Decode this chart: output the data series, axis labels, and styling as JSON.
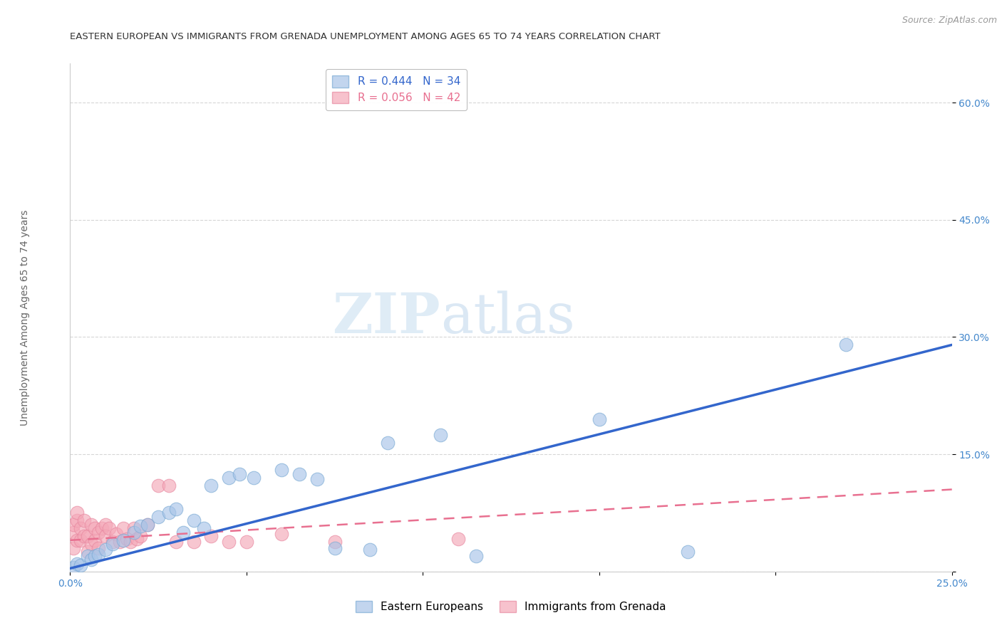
{
  "title": "EASTERN EUROPEAN VS IMMIGRANTS FROM GRENADA UNEMPLOYMENT AMONG AGES 65 TO 74 YEARS CORRELATION CHART",
  "source": "Source: ZipAtlas.com",
  "ylabel": "Unemployment Among Ages 65 to 74 years",
  "xlim": [
    0.0,
    0.25
  ],
  "ylim": [
    0.0,
    0.65
  ],
  "xticks": [
    0.0,
    0.05,
    0.1,
    0.15,
    0.2,
    0.25
  ],
  "yticks": [
    0.0,
    0.15,
    0.3,
    0.45,
    0.6
  ],
  "ytick_labels": [
    "",
    "15.0%",
    "30.0%",
    "45.0%",
    "60.0%"
  ],
  "xtick_labels": [
    "0.0%",
    "",
    "",
    "",
    "",
    "25.0%"
  ],
  "watermark_zip": "ZIP",
  "watermark_atlas": "atlas",
  "legend1_r": "0.444",
  "legend1_n": "34",
  "legend2_r": "0.056",
  "legend2_n": "42",
  "blue_color": "#a8c4e8",
  "blue_edge_color": "#7aaad4",
  "pink_color": "#f4a8b8",
  "pink_edge_color": "#e888a0",
  "blue_line_color": "#3366cc",
  "pink_line_color": "#e87090",
  "blue_x": [
    0.001,
    0.002,
    0.003,
    0.005,
    0.006,
    0.007,
    0.008,
    0.01,
    0.012,
    0.015,
    0.018,
    0.02,
    0.022,
    0.025,
    0.028,
    0.03,
    0.032,
    0.035,
    0.038,
    0.04,
    0.045,
    0.048,
    0.052,
    0.06,
    0.065,
    0.07,
    0.075,
    0.085,
    0.09,
    0.105,
    0.115,
    0.15,
    0.175,
    0.22
  ],
  "blue_y": [
    0.005,
    0.01,
    0.008,
    0.02,
    0.015,
    0.02,
    0.022,
    0.028,
    0.035,
    0.04,
    0.05,
    0.058,
    0.06,
    0.07,
    0.075,
    0.08,
    0.05,
    0.065,
    0.055,
    0.11,
    0.12,
    0.125,
    0.12,
    0.13,
    0.125,
    0.118,
    0.03,
    0.028,
    0.165,
    0.175,
    0.02,
    0.195,
    0.025,
    0.29
  ],
  "pink_x": [
    0.001,
    0.001,
    0.001,
    0.002,
    0.002,
    0.002,
    0.003,
    0.003,
    0.004,
    0.004,
    0.005,
    0.005,
    0.006,
    0.006,
    0.007,
    0.007,
    0.008,
    0.008,
    0.009,
    0.01,
    0.01,
    0.011,
    0.012,
    0.013,
    0.014,
    0.015,
    0.016,
    0.017,
    0.018,
    0.019,
    0.02,
    0.022,
    0.025,
    0.028,
    0.03,
    0.035,
    0.04,
    0.045,
    0.05,
    0.06,
    0.075,
    0.11
  ],
  "pink_y": [
    0.03,
    0.05,
    0.06,
    0.04,
    0.065,
    0.075,
    0.04,
    0.055,
    0.045,
    0.065,
    0.025,
    0.045,
    0.035,
    0.06,
    0.04,
    0.055,
    0.03,
    0.05,
    0.055,
    0.06,
    0.045,
    0.055,
    0.038,
    0.048,
    0.038,
    0.055,
    0.042,
    0.038,
    0.055,
    0.042,
    0.045,
    0.06,
    0.11,
    0.11,
    0.038,
    0.038,
    0.045,
    0.038,
    0.038,
    0.048,
    0.038,
    0.042
  ],
  "blue_line_x": [
    0.0,
    0.25
  ],
  "blue_line_y": [
    0.004,
    0.29
  ],
  "pink_line_x": [
    0.0,
    0.25
  ],
  "pink_line_y": [
    0.04,
    0.105
  ],
  "background_color": "#ffffff",
  "grid_color": "#cccccc",
  "title_fontsize": 9.5,
  "axis_label_fontsize": 10,
  "tick_fontsize": 10,
  "legend_fontsize": 11,
  "source_fontsize": 9
}
